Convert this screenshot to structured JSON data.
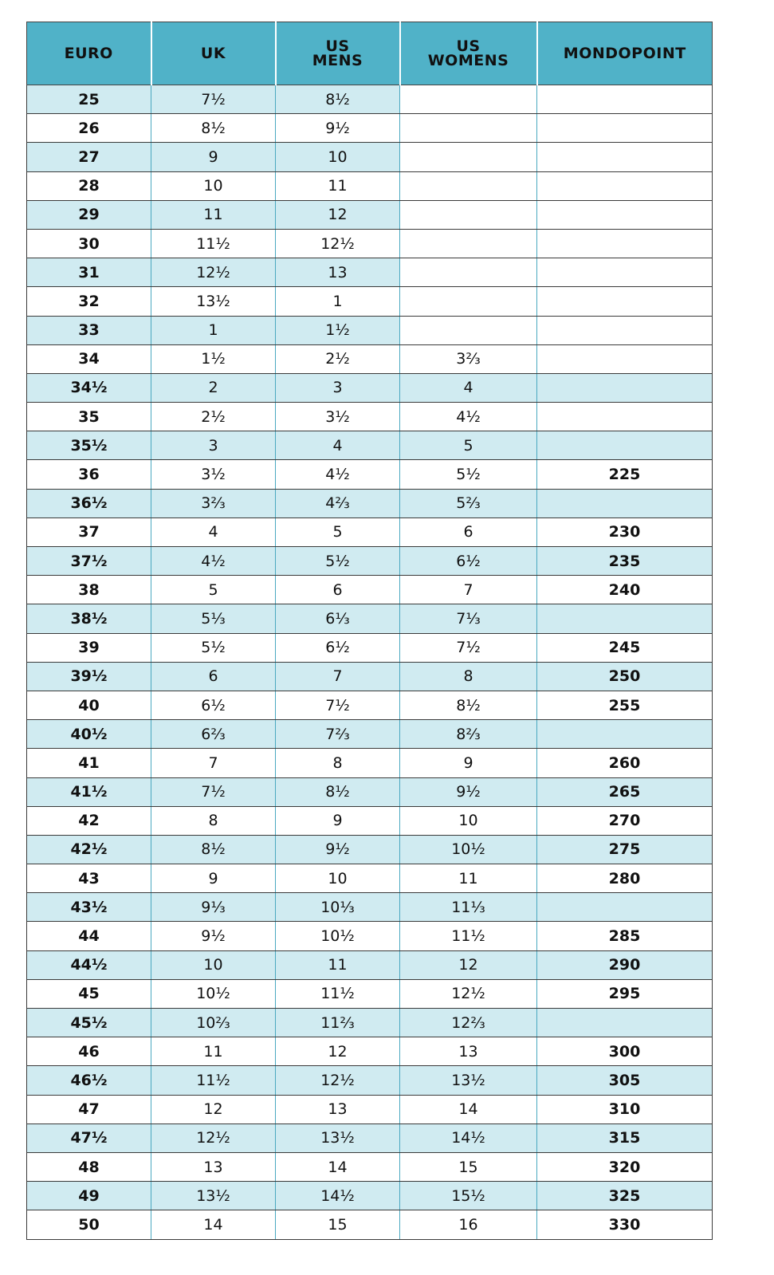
{
  "table": {
    "headers": [
      [
        "EURO"
      ],
      [
        "UK"
      ],
      [
        "US",
        "MENS"
      ],
      [
        "US",
        "WOMENS"
      ],
      [
        "MONDOPOINT"
      ]
    ],
    "colors": {
      "header_bg": "#50b2c8",
      "stripe_bg": "#d0ebf1",
      "divider": "#4aa8c0"
    },
    "rows": [
      [
        "25",
        "7½",
        "8½",
        "",
        ""
      ],
      [
        "26",
        "8½",
        "9½",
        "",
        ""
      ],
      [
        "27",
        "9",
        "10",
        "",
        ""
      ],
      [
        "28",
        "10",
        "11",
        "",
        ""
      ],
      [
        "29",
        "11",
        "12",
        "",
        ""
      ],
      [
        "30",
        "11½",
        "12½",
        "",
        ""
      ],
      [
        "31",
        "12½",
        "13",
        "",
        ""
      ],
      [
        "32",
        "13½",
        "1",
        "",
        ""
      ],
      [
        "33",
        "1",
        "1½",
        "",
        ""
      ],
      [
        "34",
        "1½",
        "2½",
        "3⅔",
        ""
      ],
      [
        "34½",
        "2",
        "3",
        "4",
        ""
      ],
      [
        "35",
        "2½",
        "3½",
        "4½",
        ""
      ],
      [
        "35½",
        "3",
        "4",
        "5",
        ""
      ],
      [
        "36",
        "3½",
        "4½",
        "5½",
        "225"
      ],
      [
        "36½",
        "3⅔",
        "4⅔",
        "5⅔",
        ""
      ],
      [
        "37",
        "4",
        "5",
        "6",
        "230"
      ],
      [
        "37½",
        "4½",
        "5½",
        "6½",
        "235"
      ],
      [
        "38",
        "5",
        "6",
        "7",
        "240"
      ],
      [
        "38½",
        "5⅓",
        "6⅓",
        "7⅓",
        ""
      ],
      [
        "39",
        "5½",
        "6½",
        "7½",
        "245"
      ],
      [
        "39½",
        "6",
        "7",
        "8",
        "250"
      ],
      [
        "40",
        "6½",
        "7½",
        "8½",
        "255"
      ],
      [
        "40½",
        "6⅔",
        "7⅔",
        "8⅔",
        ""
      ],
      [
        "41",
        "7",
        "8",
        "9",
        "260"
      ],
      [
        "41½",
        "7½",
        "8½",
        "9½",
        "265"
      ],
      [
        "42",
        "8",
        "9",
        "10",
        "270"
      ],
      [
        "42½",
        "8½",
        "9½",
        "10½",
        "275"
      ],
      [
        "43",
        "9",
        "10",
        "11",
        "280"
      ],
      [
        "43½",
        "9⅓",
        "10⅓",
        "11⅓",
        ""
      ],
      [
        "44",
        "9½",
        "10½",
        "11½",
        "285"
      ],
      [
        "44½",
        "10",
        "11",
        "12",
        "290"
      ],
      [
        "45",
        "10½",
        "11½",
        "12½",
        "295"
      ],
      [
        "45½",
        "10⅔",
        "11⅔",
        "12⅔",
        ""
      ],
      [
        "46",
        "11",
        "12",
        "13",
        "300"
      ],
      [
        "46½",
        "11½",
        "12½",
        "13½",
        "305"
      ],
      [
        "47",
        "12",
        "13",
        "14",
        "310"
      ],
      [
        "47½",
        "12½",
        "13½",
        "14½",
        "315"
      ],
      [
        "48",
        "13",
        "14",
        "15",
        "320"
      ],
      [
        "49",
        "13½",
        "14½",
        "15½",
        "325"
      ],
      [
        "50",
        "14",
        "15",
        "16",
        "330"
      ]
    ]
  }
}
